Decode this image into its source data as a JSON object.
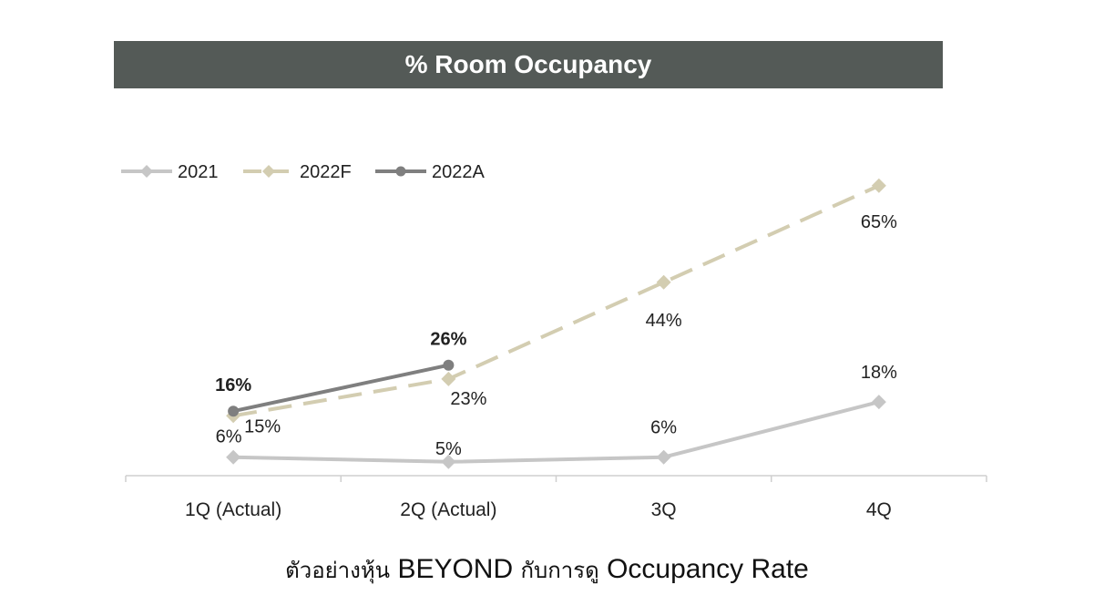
{
  "chart_data": {
    "type": "line",
    "title": "% Room Occupancy",
    "categories": [
      "1Q (Actual)",
      "2Q (Actual)",
      "3Q",
      "4Q"
    ],
    "ylim": [
      0,
      80
    ],
    "grid": false,
    "legend_position": "top-left",
    "series": [
      {
        "name": "2021",
        "values": [
          6,
          5,
          6,
          18
        ],
        "labels": [
          "6%",
          "5%",
          "6%",
          "18%"
        ],
        "color": "#c6c6c6",
        "style": "solid",
        "marker": "diamond"
      },
      {
        "name": "2022F",
        "values": [
          15,
          23,
          44,
          65
        ],
        "labels": [
          "15%",
          "23%",
          "44%",
          "65%"
        ],
        "color": "#d3cdb1",
        "style": "dashed",
        "marker": "diamond"
      },
      {
        "name": "2022A",
        "values": [
          16,
          26,
          null,
          null
        ],
        "labels": [
          "16%",
          "26%",
          null,
          null
        ],
        "color": "#7f7f7f",
        "style": "solid",
        "marker": "circle"
      }
    ]
  },
  "caption": {
    "part1": "ตัวอย่างหุ้น",
    "part2": "BEYOND",
    "part3": "กับการดู",
    "part4": "Occupancy Rate"
  }
}
